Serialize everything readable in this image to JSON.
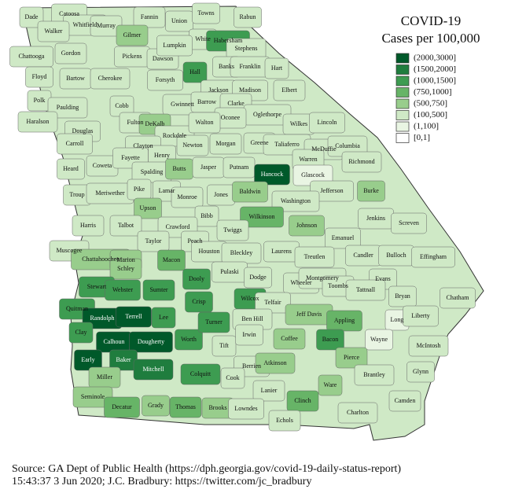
{
  "map": {
    "title": "COVID-19",
    "subtitle": "Cases per 100,000",
    "legend": [
      {
        "label": "(2000,3000]",
        "color": "#00592a"
      },
      {
        "label": "(1500,2000]",
        "color": "#1f7d3e"
      },
      {
        "label": "(1000,1500]",
        "color": "#3d9c51"
      },
      {
        "label": "(750,1000]",
        "color": "#67b467"
      },
      {
        "label": "(500,750]",
        "color": "#98cd8c"
      },
      {
        "label": "(100,500]",
        "color": "#cfe9c6"
      },
      {
        "label": "(1,100]",
        "color": "#e9f5e3"
      },
      {
        "label": "[0,1]",
        "color": "#ffffff"
      }
    ],
    "counties": [
      {
        "name": "Dade",
        "bin": "(100,500]"
      },
      {
        "name": "Catoosa",
        "bin": "(100,500]"
      },
      {
        "name": "Whitfield",
        "bin": "(100,500]"
      },
      {
        "name": "Murray",
        "bin": "(100,500]"
      },
      {
        "name": "Fannin",
        "bin": "(100,500]"
      },
      {
        "name": "Union",
        "bin": "(100,500]"
      },
      {
        "name": "Towns",
        "bin": "(100,500]"
      },
      {
        "name": "Rabun",
        "bin": "(100,500]"
      },
      {
        "name": "Walker",
        "bin": "(100,500]"
      },
      {
        "name": "Gilmer",
        "bin": "(500,750]"
      },
      {
        "name": "White",
        "bin": "(100,500]"
      },
      {
        "name": "Habersham",
        "bin": "(1000,1500]"
      },
      {
        "name": "Stephens",
        "bin": "(100,500]"
      },
      {
        "name": "Chattooga",
        "bin": "(100,500]"
      },
      {
        "name": "Gordon",
        "bin": "(100,500]"
      },
      {
        "name": "Pickens",
        "bin": "(100,500]"
      },
      {
        "name": "Dawson",
        "bin": "(100,500]"
      },
      {
        "name": "Lumpkin",
        "bin": "(100,500]"
      },
      {
        "name": "Hall",
        "bin": "(1000,1500]"
      },
      {
        "name": "Banks",
        "bin": "(100,500]"
      },
      {
        "name": "Franklin",
        "bin": "(100,500]"
      },
      {
        "name": "Hart",
        "bin": "(100,500]"
      },
      {
        "name": "Floyd",
        "bin": "(100,500]"
      },
      {
        "name": "Bartow",
        "bin": "(100,500]"
      },
      {
        "name": "Cherokee",
        "bin": "(100,500]"
      },
      {
        "name": "Forsyth",
        "bin": "(100,500]"
      },
      {
        "name": "Jackson",
        "bin": "(100,500]"
      },
      {
        "name": "Madison",
        "bin": "(100,500]"
      },
      {
        "name": "Elbert",
        "bin": "(100,500]"
      },
      {
        "name": "Polk",
        "bin": "(100,500]"
      },
      {
        "name": "Paulding",
        "bin": "(100,500]"
      },
      {
        "name": "Cobb",
        "bin": "(100,500]"
      },
      {
        "name": "Gwinnett",
        "bin": "(100,500]"
      },
      {
        "name": "Barrow",
        "bin": "(100,500]"
      },
      {
        "name": "Clarke",
        "bin": "(100,500]"
      },
      {
        "name": "Oglethorpe",
        "bin": "(100,500]"
      },
      {
        "name": "Oconee",
        "bin": "(100,500]"
      },
      {
        "name": "Haralson",
        "bin": "(100,500]"
      },
      {
        "name": "Douglas",
        "bin": "(100,500]"
      },
      {
        "name": "Fulton",
        "bin": "(100,500]"
      },
      {
        "name": "DeKalb",
        "bin": "(500,750]"
      },
      {
        "name": "Rockdale",
        "bin": "(100,500]"
      },
      {
        "name": "Walton",
        "bin": "(100,500]"
      },
      {
        "name": "Wilkes",
        "bin": "(100,500]"
      },
      {
        "name": "Lincoln",
        "bin": "(100,500]"
      },
      {
        "name": "Carroll",
        "bin": "(100,500]"
      },
      {
        "name": "Clayton",
        "bin": "(100,500]"
      },
      {
        "name": "Henry",
        "bin": "(100,500]"
      },
      {
        "name": "Newton",
        "bin": "(100,500]"
      },
      {
        "name": "Morgan",
        "bin": "(100,500]"
      },
      {
        "name": "Greene",
        "bin": "(100,500]"
      },
      {
        "name": "Taliaferro",
        "bin": "(100,500]"
      },
      {
        "name": "McDuffie",
        "bin": "(100,500]"
      },
      {
        "name": "Columbia",
        "bin": "(100,500]"
      },
      {
        "name": "Richmond",
        "bin": "(100,500]"
      },
      {
        "name": "Warren",
        "bin": "(100,500]"
      },
      {
        "name": "Heard",
        "bin": "(100,500]"
      },
      {
        "name": "Coweta",
        "bin": "(100,500]"
      },
      {
        "name": "Fayette",
        "bin": "(100,500]"
      },
      {
        "name": "Spalding",
        "bin": "(100,500]"
      },
      {
        "name": "Butts",
        "bin": "(500,750]"
      },
      {
        "name": "Jasper",
        "bin": "(100,500]"
      },
      {
        "name": "Putnam",
        "bin": "(100,500]"
      },
      {
        "name": "Hancock",
        "bin": "(2000,3000]"
      },
      {
        "name": "Glascock",
        "bin": "(1,100]"
      },
      {
        "name": "Troup",
        "bin": "(100,500]"
      },
      {
        "name": "Meriwether",
        "bin": "(100,500]"
      },
      {
        "name": "Pike",
        "bin": "(100,500]"
      },
      {
        "name": "Lamar",
        "bin": "(100,500]"
      },
      {
        "name": "Monroe",
        "bin": "(100,500]"
      },
      {
        "name": "Jones",
        "bin": "(100,500]"
      },
      {
        "name": "Baldwin",
        "bin": "(500,750]"
      },
      {
        "name": "Jefferson",
        "bin": "(100,500]"
      },
      {
        "name": "Burke",
        "bin": "(500,750]"
      },
      {
        "name": "Washington",
        "bin": "(100,500]"
      },
      {
        "name": "Upson",
        "bin": "(500,750]"
      },
      {
        "name": "Harris",
        "bin": "(100,500]"
      },
      {
        "name": "Talbot",
        "bin": "(100,500]"
      },
      {
        "name": "Bibb",
        "bin": "(100,500]"
      },
      {
        "name": "Wilkinson",
        "bin": "(750,1000]"
      },
      {
        "name": "Twiggs",
        "bin": "(100,500]"
      },
      {
        "name": "Johnson",
        "bin": "(500,750]"
      },
      {
        "name": "Jenkins",
        "bin": "(100,500]"
      },
      {
        "name": "Screven",
        "bin": "(100,500]"
      },
      {
        "name": "Crawford",
        "bin": "(100,500]"
      },
      {
        "name": "Taylor",
        "bin": "(100,500]"
      },
      {
        "name": "Peach",
        "bin": "(100,500]"
      },
      {
        "name": "Houston",
        "bin": "(100,500]"
      },
      {
        "name": "Bleckley",
        "bin": "(100,500]"
      },
      {
        "name": "Laurens",
        "bin": "(100,500]"
      },
      {
        "name": "Emanuel",
        "bin": "(100,500]"
      },
      {
        "name": "Muscogee",
        "bin": "(100,500]"
      },
      {
        "name": "Chattahoochee",
        "bin": "(500,750]"
      },
      {
        "name": "Marion",
        "bin": "(500,750]"
      },
      {
        "name": "Schley",
        "bin": "(500,750]"
      },
      {
        "name": "Macon",
        "bin": "(750,1000]"
      },
      {
        "name": "Candler",
        "bin": "(100,500]"
      },
      {
        "name": "Bulloch",
        "bin": "(100,500]"
      },
      {
        "name": "Effingham",
        "bin": "(100,500]"
      },
      {
        "name": "Treutlen",
        "bin": "(100,500]"
      },
      {
        "name": "Stewart",
        "bin": "(1000,1500]"
      },
      {
        "name": "Webster",
        "bin": "(1000,1500]"
      },
      {
        "name": "Sumter",
        "bin": "(1000,1500]"
      },
      {
        "name": "Dooly",
        "bin": "(1000,1500]"
      },
      {
        "name": "Pulaski",
        "bin": "(100,500]"
      },
      {
        "name": "Dodge",
        "bin": "(100,500]"
      },
      {
        "name": "Wheeler",
        "bin": "(100,500]"
      },
      {
        "name": "Montgomery",
        "bin": "(100,500]"
      },
      {
        "name": "Toombs",
        "bin": "(100,500]"
      },
      {
        "name": "Evans",
        "bin": "(100,500]"
      },
      {
        "name": "Tattnall",
        "bin": "(100,500]"
      },
      {
        "name": "Bryan",
        "bin": "(100,500]"
      },
      {
        "name": "Chatham",
        "bin": "(100,500]"
      },
      {
        "name": "Quitman",
        "bin": "(1000,1500]"
      },
      {
        "name": "Randolph",
        "bin": "(2000,3000]"
      },
      {
        "name": "Terrell",
        "bin": "(2000,3000]"
      },
      {
        "name": "Lee",
        "bin": "(1000,1500]"
      },
      {
        "name": "Crisp",
        "bin": "(1000,1500]"
      },
      {
        "name": "Wilcox",
        "bin": "(1000,1500]"
      },
      {
        "name": "Telfair",
        "bin": "(100,500]"
      },
      {
        "name": "Ben Hill",
        "bin": "(100,500]"
      },
      {
        "name": "Jeff Davis",
        "bin": "(500,750]"
      },
      {
        "name": "Appling",
        "bin": "(750,1000]"
      },
      {
        "name": "Long",
        "bin": "(1,100]"
      },
      {
        "name": "Liberty",
        "bin": "(100,500]"
      },
      {
        "name": "Clay",
        "bin": "(1000,1500]"
      },
      {
        "name": "Calhoun",
        "bin": "(2000,3000]"
      },
      {
        "name": "Dougherty",
        "bin": "(2000,3000]"
      },
      {
        "name": "Worth",
        "bin": "(1000,1500]"
      },
      {
        "name": "Turner",
        "bin": "(1000,1500]"
      },
      {
        "name": "Tift",
        "bin": "(100,500]"
      },
      {
        "name": "Irwin",
        "bin": "(100,500]"
      },
      {
        "name": "Coffee",
        "bin": "(500,750]"
      },
      {
        "name": "Bacon",
        "bin": "(1000,1500]"
      },
      {
        "name": "Wayne",
        "bin": "(1,100]"
      },
      {
        "name": "McIntosh",
        "bin": "(100,500]"
      },
      {
        "name": "Early",
        "bin": "(2000,3000]"
      },
      {
        "name": "Baker",
        "bin": "(1500,2000]"
      },
      {
        "name": "Mitchell",
        "bin": "(1500,2000]"
      },
      {
        "name": "Miller",
        "bin": "(500,750]"
      },
      {
        "name": "Colquitt",
        "bin": "(1000,1500]"
      },
      {
        "name": "Berrien",
        "bin": "(100,500]"
      },
      {
        "name": "Atkinson",
        "bin": "(500,750]"
      },
      {
        "name": "Pierce",
        "bin": "(500,750]"
      },
      {
        "name": "Brantley",
        "bin": "(100,500]"
      },
      {
        "name": "Glynn",
        "bin": "(100,500]"
      },
      {
        "name": "Cook",
        "bin": "(100,500]"
      },
      {
        "name": "Ware",
        "bin": "(500,750]"
      },
      {
        "name": "Lanier",
        "bin": "(100,500]"
      },
      {
        "name": "Seminole",
        "bin": "(500,750]"
      },
      {
        "name": "Decatur",
        "bin": "(750,1000]"
      },
      {
        "name": "Grady",
        "bin": "(500,750]"
      },
      {
        "name": "Thomas",
        "bin": "(750,1000]"
      },
      {
        "name": "Brooks",
        "bin": "(500,750]"
      },
      {
        "name": "Lowndes",
        "bin": "(100,500]"
      },
      {
        "name": "Clinch",
        "bin": "(750,1000]"
      },
      {
        "name": "Echols",
        "bin": "(100,500]"
      },
      {
        "name": "Charlton",
        "bin": "(100,500]"
      },
      {
        "name": "Camden",
        "bin": "(100,500]"
      }
    ]
  },
  "source": {
    "line1": "Source: GA Dept of Public Health (https://dph.georgia.gov/covid-19-daily-status-report)",
    "line2": "15:43:37   3 Jun 2020; J.C. Bradbury: https://twitter.com/jc_bradbury"
  }
}
